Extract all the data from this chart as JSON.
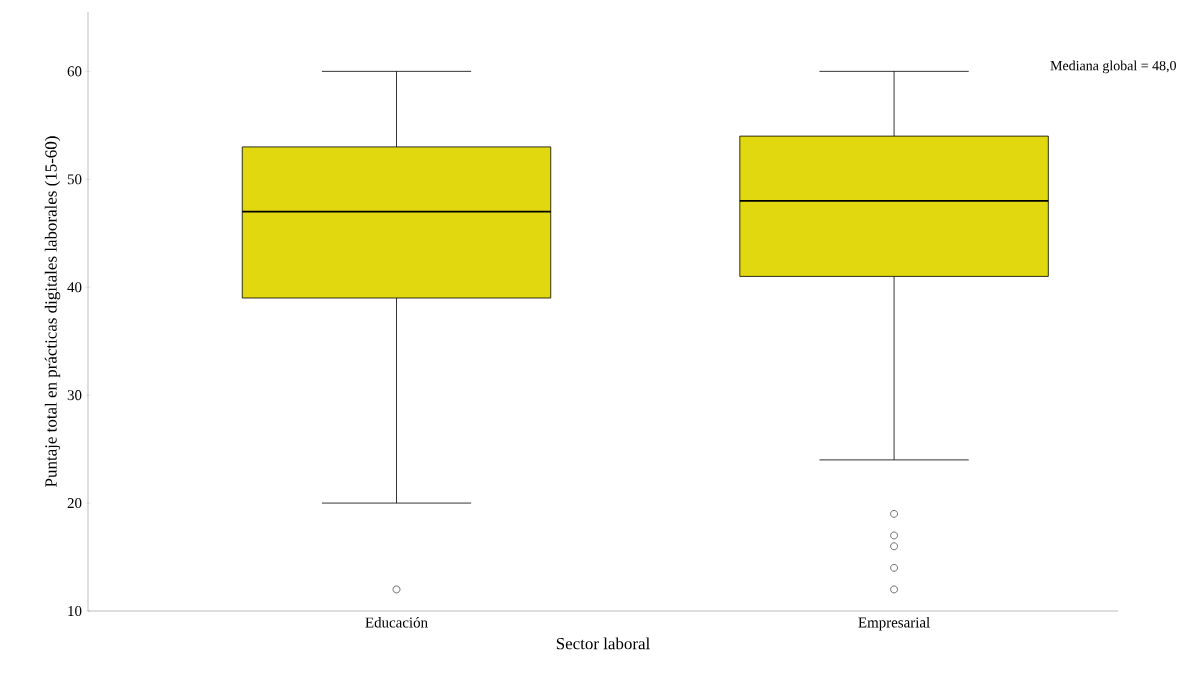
{
  "chart_data": {
    "type": "box",
    "xlabel": "Sector laboral",
    "ylabel": "Puntaje total en prácticas digitales laborales (15-60)",
    "categories": [
      "Educación",
      "Empresarial"
    ],
    "boxes": [
      {
        "low": 20,
        "q1": 39,
        "median": 47,
        "q3": 53,
        "high": 60,
        "outliers": [
          12
        ]
      },
      {
        "low": 24,
        "q1": 41,
        "median": 48,
        "q3": 54,
        "high": 60,
        "outliers": [
          19,
          17,
          16,
          14,
          12
        ]
      }
    ],
    "color": "#e1d80f",
    "ylim": [
      10,
      65.5
    ],
    "yticks": [
      10,
      20,
      30,
      40,
      50,
      60
    ],
    "grid": false,
    "legend": false,
    "annotations": [
      "Mediana global = 48,0"
    ]
  }
}
